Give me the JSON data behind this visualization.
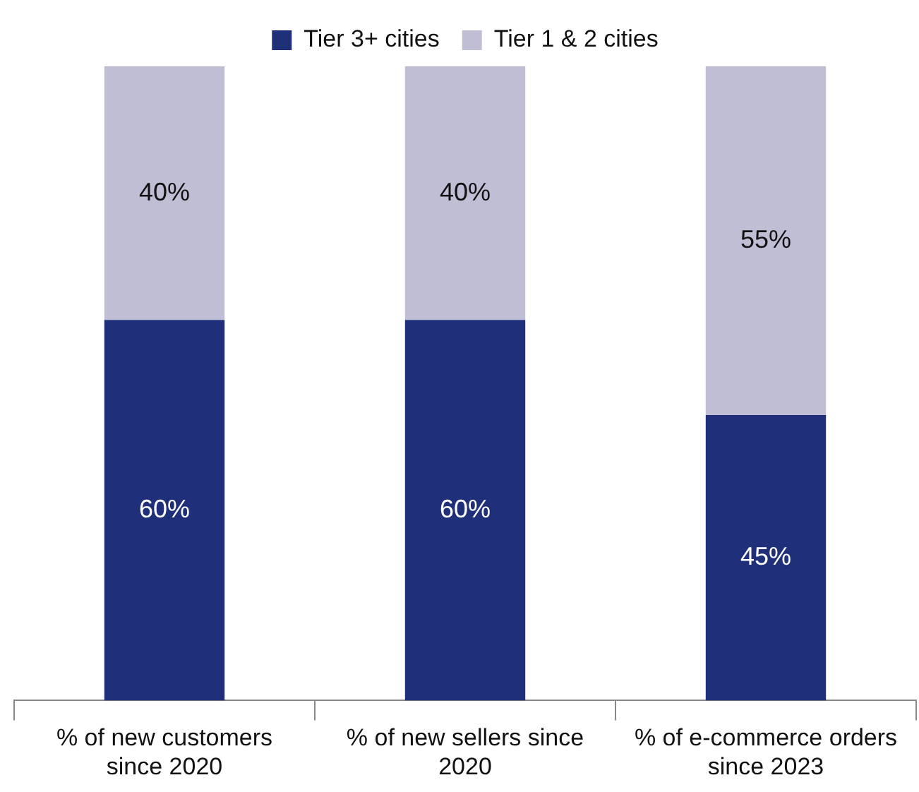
{
  "chart_data": {
    "type": "bar",
    "stacked": true,
    "legend": "top",
    "categories": [
      "% of new customers since 2020",
      "% of new sellers since 2020",
      "% of e-commerce orders since 2023"
    ],
    "series": [
      {
        "name": "Tier 3+ cities",
        "color": "#1f2f7a",
        "values": [
          60,
          60,
          45
        ],
        "value_labels": [
          "60%",
          "60%",
          "45%"
        ]
      },
      {
        "name": "Tier 1 & 2 cities",
        "color": "#c0bed4",
        "values": [
          40,
          40,
          55
        ],
        "value_labels": [
          "40%",
          "40%",
          "55%"
        ]
      }
    ]
  }
}
